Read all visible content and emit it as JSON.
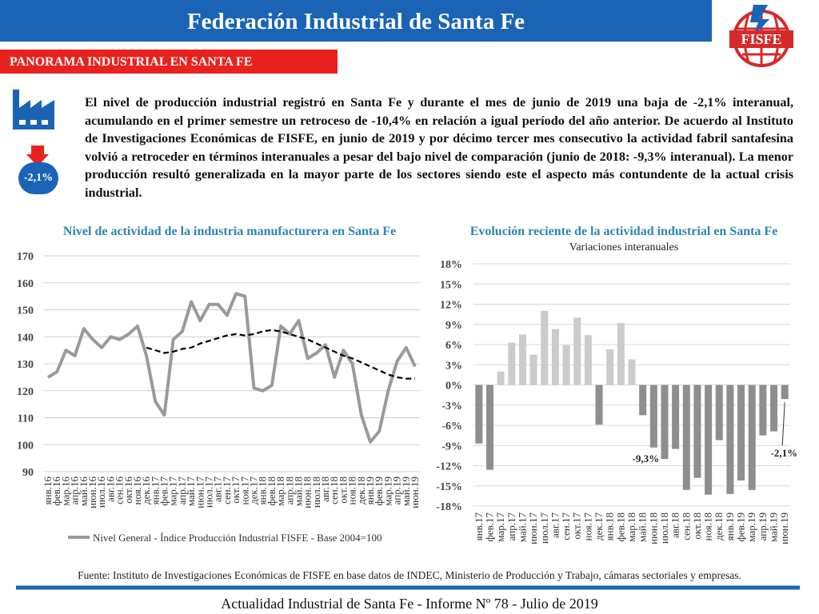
{
  "header": {
    "title": "Federación Industrial de Santa Fe",
    "logo": "FISFE"
  },
  "section": "PANORAMA INDUSTRIAL EN SANTA FE",
  "badge": "-2,1%",
  "paragraph": "El nivel de producción industrial registró en Santa Fe y durante el mes de junio de 2019 una baja de -2,1% interanual, acumulando en el primer semestre un retroceso de -10,4% en relación a igual período del año anterior. De acuerdo al Instituto de Investigaciones Económicas de FISFE, en junio de 2019 y por décimo tercer mes consecutivo la actividad fabril santafesina volvió a retroceder en términos interanuales a pesar del bajo nivel de comparación (junio de 2018: -9,3% interanual). La menor producción resultó generalizada en la mayor parte de los sectores siendo este el aspecto más contundente de la actual crisis industrial.",
  "chart_data": [
    {
      "type": "line",
      "title": "Nivel de actividad de la industria manufacturera en Santa Fe",
      "categories": [
        "янв.16",
        "фев.16",
        "мар.16",
        "апр.16",
        "май.16",
        "июн.16",
        "июл.16",
        "авг.16",
        "сен.16",
        "окт.16",
        "ноя.16",
        "дек.16",
        "янв.17",
        "фев.17",
        "мар.17",
        "апр.17",
        "май.17",
        "июн.17",
        "июл.17",
        "авг.17",
        "сен.17",
        "окт.17",
        "ноя.17",
        "дек.17",
        "янв.18",
        "фев.18",
        "мар.18",
        "апр.18",
        "май.18",
        "июн.18",
        "июл.18",
        "авг.18",
        "сен.18",
        "окт.18",
        "ноя.18",
        "дек.18",
        "янв.19",
        "фев.19",
        "мар.19",
        "апр.19",
        "май.19",
        "июн.19"
      ],
      "series": [
        {
          "name": "Nivel General - Índice Producción Industrial FISFE - Base 2004=100",
          "color": "#9a9a9a",
          "style": "solid",
          "values": [
            125,
            127,
            135,
            133,
            143,
            139,
            136,
            140,
            139,
            141,
            144,
            133,
            116,
            111,
            139,
            142,
            153,
            146,
            152,
            152,
            148,
            156,
            155,
            121,
            120,
            122,
            144,
            141,
            146,
            132,
            134,
            137,
            125,
            135,
            130,
            111,
            101,
            105,
            120,
            131,
            136,
            129
          ]
        },
        {
          "color": "#000000",
          "style": "dashed",
          "values": [
            null,
            null,
            null,
            null,
            null,
            null,
            null,
            null,
            null,
            null,
            null,
            136,
            135,
            134,
            134.5,
            135.5,
            136,
            137.5,
            138.5,
            139.5,
            140.5,
            141,
            140.5,
            141,
            142,
            142.5,
            142,
            141,
            140,
            139,
            137.5,
            136,
            134.5,
            133,
            132,
            130.5,
            129,
            127.5,
            126,
            125,
            124.5,
            124.5
          ]
        }
      ],
      "ylim": [
        90,
        170
      ],
      "yticks": [
        90,
        100,
        110,
        120,
        130,
        140,
        150,
        160,
        170
      ],
      "grid": true
    },
    {
      "type": "bar",
      "title": "Evolución reciente de la actividad industrial en Santa Fe",
      "subtitle": "Variaciones interanuales",
      "categories": [
        "янв.17",
        "фев.17",
        "мар.17",
        "апр.17",
        "май.17",
        "июн.17",
        "июл.17",
        "авг.17",
        "сен.17",
        "окт.17",
        "ноя.17",
        "дек.17",
        "янв.18",
        "фев.18",
        "мар.18",
        "май.18",
        "июн.18",
        "июл.18",
        "авг.18",
        "сен.18",
        "окт.18",
        "ноя.18",
        "дек.18",
        "янв.19",
        "фев.19",
        "мар.19",
        "апр.19",
        "май.19",
        "июн.19"
      ],
      "values": [
        -8.7,
        -12.6,
        2.0,
        6.3,
        7.5,
        4.5,
        11.0,
        8.3,
        5.9,
        10.0,
        7.4,
        -5.9,
        5.3,
        9.2,
        3.8,
        -4.5,
        -9.3,
        -11.0,
        -9.5,
        -15.6,
        -13.8,
        -16.3,
        -8.2,
        -16.2,
        -14.2,
        -15.6,
        -7.5,
        -6.9,
        -2.1
      ],
      "value_labels": [
        null,
        null,
        null,
        null,
        null,
        null,
        null,
        null,
        null,
        null,
        null,
        null,
        null,
        null,
        null,
        null,
        "-9,3%",
        null,
        null,
        null,
        null,
        null,
        null,
        null,
        null,
        null,
        null,
        null,
        "-2,1%"
      ],
      "colors": {
        "positive": "#cbcbcb",
        "negative": "#8e8e8e"
      },
      "ylim": [
        -18,
        18
      ],
      "yticks": [
        {
          "value": 18,
          "label": "18%"
        },
        {
          "value": 15,
          "label": "15%"
        },
        {
          "value": 12,
          "label": "12%"
        },
        {
          "value": 9,
          "label": "9%"
        },
        {
          "value": 6,
          "label": "6%"
        },
        {
          "value": 3,
          "label": "3%"
        },
        {
          "value": 0,
          "label": "0%"
        },
        {
          "value": -3,
          "label": "-3%"
        },
        {
          "value": -6,
          "label": "-6%"
        },
        {
          "value": -9,
          "label": "-9%"
        },
        {
          "value": -12,
          "label": "-12%"
        },
        {
          "value": -15,
          "label": "-15%"
        },
        {
          "value": -18,
          "label": "-18%"
        }
      ],
      "grid": true
    }
  ],
  "source": "Fuente: Instituto de Investigaciones Económicas de FISFE en base datos de INDEC, Ministerio de Producción y Trabajo, cámaras sectoriales y empresas.",
  "footer": "Actualidad Industrial de Santa Fe - Informe Nº 78 - Julio de 2019"
}
